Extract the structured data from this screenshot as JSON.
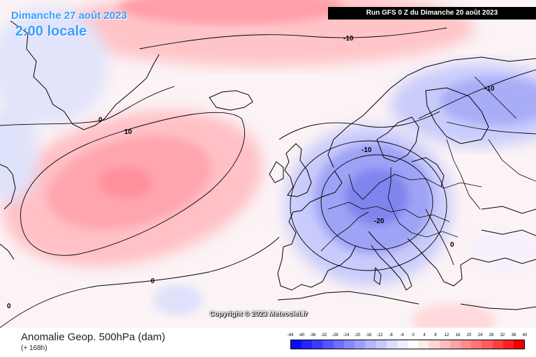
{
  "header": {
    "date": "Dimanche 27 août 2023",
    "local_time": "2:00 locale",
    "run": "Run GFS 0 Z du Dimanche 20 août 2023"
  },
  "map": {
    "contour_labels": [
      "-10",
      "-10",
      "10",
      "0",
      "-10",
      "-20",
      "0",
      "0",
      "0"
    ],
    "copyright": "Copyright © 2023 Meteociel.fr"
  },
  "footer": {
    "parameter": "Anomalie Geop. 500hPa (dam)",
    "forecast_step": "(+ 168h)"
  },
  "legend": {
    "ticks": [
      "-44",
      "-40",
      "-36",
      "-32",
      "-28",
      "-24",
      "-20",
      "-16",
      "-12",
      "-8",
      "-4",
      "0",
      "4",
      "8",
      "12",
      "16",
      "20",
      "24",
      "28",
      "32",
      "36",
      "40"
    ],
    "colors": [
      "#0a0aff",
      "#2424ff",
      "#3c3cff",
      "#5555ff",
      "#6e6eff",
      "#8686ff",
      "#9e9eff",
      "#b4b4ff",
      "#c8c8ff",
      "#dcdcff",
      "#ececff",
      "#ffffff",
      "#ffeaea",
      "#ffd4d4",
      "#ffbcbc",
      "#ffa4a4",
      "#ff8c8c",
      "#ff7474",
      "#ff5c5c",
      "#ff3e3e",
      "#ff1f1f",
      "#ee0000"
    ]
  }
}
